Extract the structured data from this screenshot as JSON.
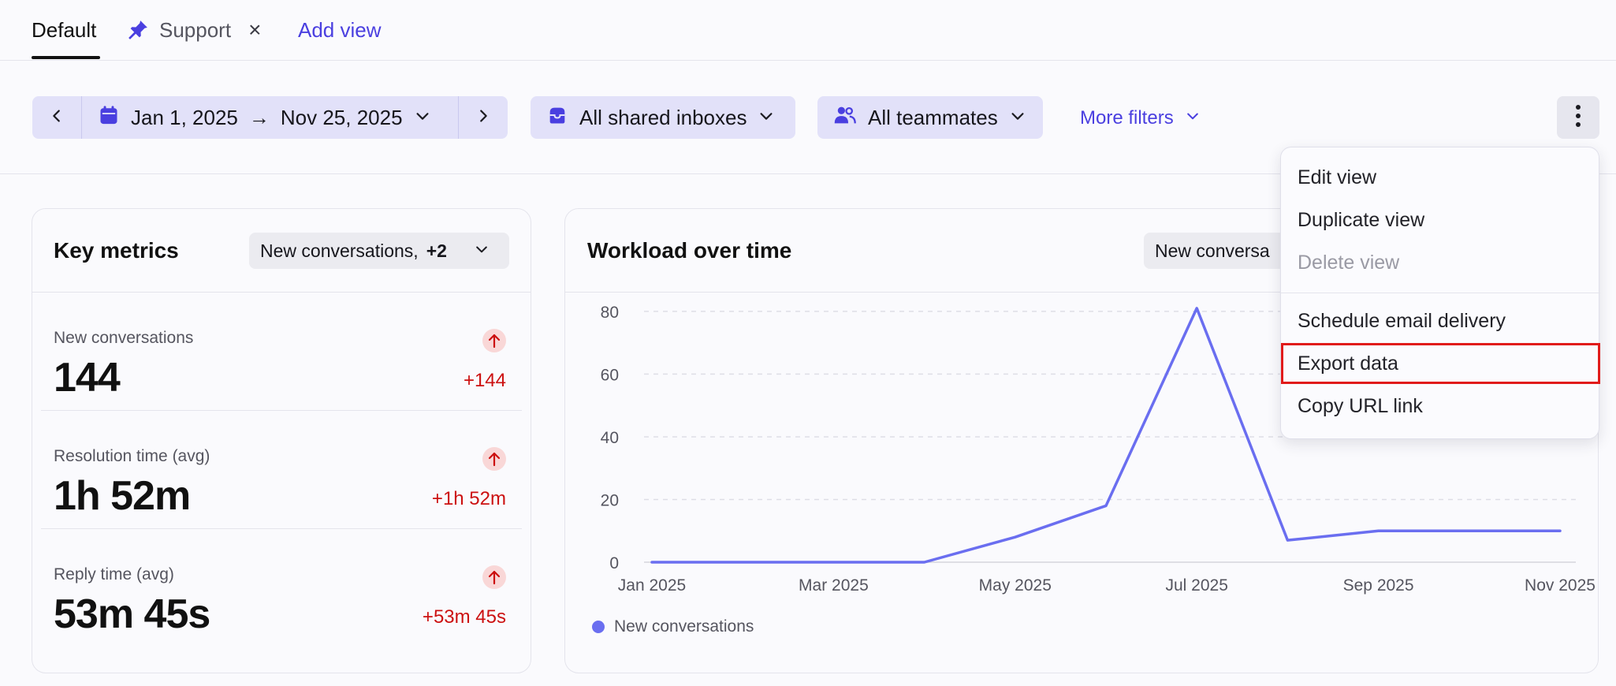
{
  "tabs": {
    "default_label": "Default",
    "support_label": "Support",
    "close_glyph": "×",
    "add_label": "Add view"
  },
  "filters": {
    "date_start": "Jan 1, 2025",
    "date_arrow": "→",
    "date_end": "Nov 25, 2025",
    "inboxes_label": "All shared inboxes",
    "teammates_label": "All teammates",
    "more_filters_label": "More filters"
  },
  "key_metrics": {
    "title": "Key metrics",
    "select_label": "New conversations,",
    "select_extra": "+2",
    "items": [
      {
        "label": "New conversations",
        "value": "144",
        "delta": "+144"
      },
      {
        "label": "Resolution time (avg)",
        "value": "1h 52m",
        "delta": "+1h 52m"
      },
      {
        "label": "Reply time (avg)",
        "value": "53m 45s",
        "delta": "+53m 45s"
      }
    ]
  },
  "workload": {
    "title": "Workload over time",
    "select_label": "New conversa",
    "legend_label": "New conversations"
  },
  "menu": {
    "items": [
      {
        "label": "Edit view",
        "state": "enabled"
      },
      {
        "label": "Duplicate view",
        "state": "enabled"
      },
      {
        "label": "Delete view",
        "state": "disabled"
      },
      {
        "label": "Schedule email delivery",
        "state": "enabled"
      },
      {
        "label": "Export data",
        "state": "highlighted"
      },
      {
        "label": "Copy URL link",
        "state": "enabled"
      }
    ]
  },
  "colors": {
    "accent": "#4a3fe0",
    "pill_bg": "#e2e1f9",
    "line": "#6a6ef0",
    "delta_red": "#cc1010",
    "highlight_border": "#e11b1b"
  },
  "chart_data": {
    "type": "line",
    "title": "Workload over time",
    "xlabel": "",
    "ylabel": "",
    "x": [
      "Jan 2025",
      "Feb 2025",
      "Mar 2025",
      "Apr 2025",
      "May 2025",
      "Jun 2025",
      "Jul 2025",
      "Aug 2025",
      "Sep 2025",
      "Oct 2025",
      "Nov 2025"
    ],
    "x_tick_labels": [
      "Jan 2025",
      "Mar 2025",
      "May 2025",
      "Jul 2025",
      "Sep 2025",
      "Nov 2025"
    ],
    "y_ticks": [
      0,
      20,
      40,
      60,
      80
    ],
    "ylim": [
      0,
      85
    ],
    "grid": true,
    "legend": "bottom-left",
    "series": [
      {
        "name": "New conversations",
        "values": [
          0,
          0,
          0,
          0,
          8,
          18,
          81,
          7,
          10,
          10,
          10
        ]
      }
    ]
  }
}
